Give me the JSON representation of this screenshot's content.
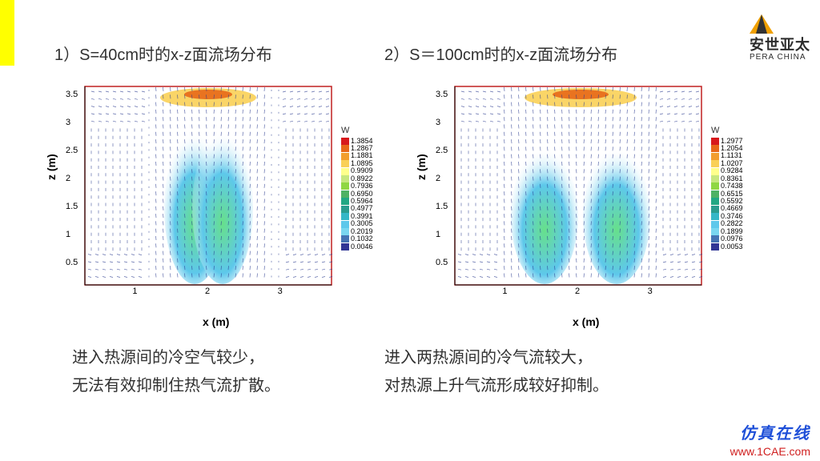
{
  "logo": {
    "cn": "安世亚太",
    "en": "PERA CHINA"
  },
  "yellow_bar": "#ffff00",
  "title_left": "1）S=40cm时的x-z面流场分布",
  "title_right": "2）S＝100cm时的x-z面流场分布",
  "axis": {
    "x": "x (m)",
    "y": "z (m)"
  },
  "ticks": {
    "x": [
      "1",
      "2",
      "3"
    ],
    "y": [
      "0.5",
      "1",
      "1.5",
      "2",
      "2.5",
      "3",
      "3.5"
    ]
  },
  "xlim": [
    0.3,
    3.7
  ],
  "ylim": [
    0.1,
    3.65
  ],
  "legend_title": "W",
  "colormap": [
    "#d7191c",
    "#e76818",
    "#f29e2e",
    "#f9d057",
    "#ffff8c",
    "#c7e77f",
    "#90d743",
    "#4eb265",
    "#22a884",
    "#2a9d8f",
    "#35b7c7",
    "#5ec8eb",
    "#7ad7f0",
    "#4575b4",
    "#313695"
  ],
  "legend_left": {
    "values": [
      "1.3854",
      "1.2867",
      "1.1881",
      "1.0895",
      "0.9909",
      "0.8922",
      "0.7936",
      "0.6950",
      "0.5964",
      "0.4977",
      "0.3991",
      "0.3005",
      "0.2019",
      "0.1032",
      "0.0046"
    ]
  },
  "legend_right": {
    "values": [
      "1.2977",
      "1.2054",
      "1.1131",
      "1.0207",
      "0.9284",
      "0.8361",
      "0.7438",
      "0.6515",
      "0.5592",
      "0.4669",
      "0.3746",
      "0.2822",
      "0.1899",
      "0.0976",
      "0.0053"
    ]
  },
  "plume": {
    "left": {
      "sep_m": 0.4,
      "centers": [
        1.8,
        2.2
      ]
    },
    "right": {
      "sep_m": 1.0,
      "centers": [
        1.5,
        2.5
      ]
    },
    "core_color": "#67e08a",
    "edge_color": "#5ec8eb",
    "vector_color": "#2a3b8f"
  },
  "caption_left_1": "进入热源间的冷空气较少，",
  "caption_left_2": "无法有效抑制住热气流扩散。",
  "caption_right_1": "进入两热源间的冷气流较大，",
  "caption_right_2": "对热源上升气流形成较好抑制。",
  "footer": {
    "brand": "仿真在线",
    "url": "www.1CAE.com"
  }
}
